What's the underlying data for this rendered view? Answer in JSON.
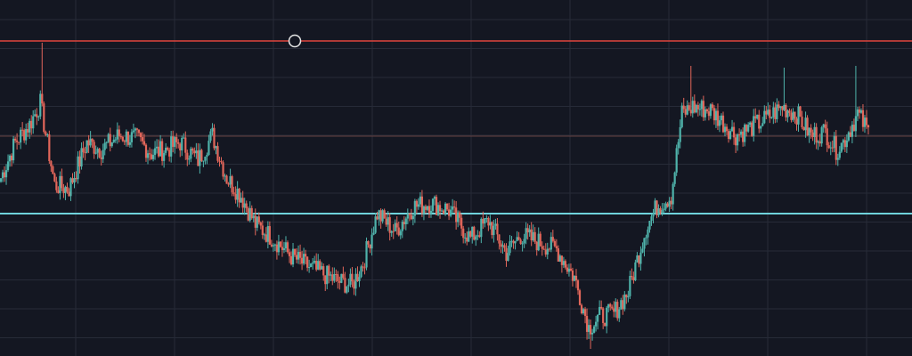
{
  "theme": {
    "background": "#141722",
    "grid": "#272b38",
    "up": "#4fb3ab",
    "down": "#e2665a",
    "resistance": "#e0453d",
    "support": "#6fd3dc",
    "faint": "#7a4a46",
    "handle_stroke": "#e6e6e6"
  },
  "chart_data": {
    "type": "candlestick",
    "grid": true,
    "ylim": [
      0,
      100
    ],
    "horizontal_lines": [
      {
        "kind": "resistance",
        "value": 88.5,
        "has_handle": true
      },
      {
        "kind": "support",
        "value": 40.0,
        "has_handle": false
      },
      {
        "kind": "faint",
        "value": 61.75,
        "has_handle": false
      }
    ],
    "keyframes": [
      [
        0,
        50
      ],
      [
        8,
        60
      ],
      [
        16,
        65
      ],
      [
        22,
        71
      ],
      [
        30,
        48
      ],
      [
        38,
        47
      ],
      [
        48,
        60
      ],
      [
        56,
        58
      ],
      [
        66,
        62
      ],
      [
        76,
        61
      ],
      [
        84,
        57
      ],
      [
        92,
        58
      ],
      [
        100,
        60
      ],
      [
        110,
        55
      ],
      [
        118,
        62
      ],
      [
        126,
        50
      ],
      [
        134,
        45
      ],
      [
        142,
        37
      ],
      [
        152,
        33
      ],
      [
        162,
        28
      ],
      [
        172,
        25
      ],
      [
        180,
        23
      ],
      [
        188,
        21
      ],
      [
        196,
        20
      ],
      [
        202,
        26
      ],
      [
        210,
        40
      ],
      [
        220,
        35
      ],
      [
        230,
        42
      ],
      [
        240,
        43
      ],
      [
        250,
        41
      ],
      [
        262,
        33
      ],
      [
        272,
        38
      ],
      [
        282,
        29
      ],
      [
        290,
        34
      ],
      [
        300,
        32
      ],
      [
        310,
        30
      ],
      [
        320,
        22
      ],
      [
        328,
        8
      ],
      [
        334,
        11
      ],
      [
        342,
        12
      ],
      [
        350,
        18
      ],
      [
        360,
        36
      ],
      [
        366,
        42
      ],
      [
        374,
        45
      ],
      [
        380,
        68
      ],
      [
        386,
        70
      ],
      [
        396,
        69
      ],
      [
        402,
        66
      ],
      [
        410,
        62
      ],
      [
        418,
        64
      ],
      [
        428,
        67
      ],
      [
        436,
        70
      ],
      [
        444,
        68
      ],
      [
        452,
        62
      ],
      [
        460,
        63
      ],
      [
        466,
        58
      ],
      [
        470,
        60
      ],
      [
        478,
        68
      ],
      [
        484,
        63
      ]
    ],
    "spikes": [
      {
        "index": 23,
        "high": 88.0
      },
      {
        "index": 385,
        "high": 81.5
      },
      {
        "index": 437,
        "high": 81.0
      },
      {
        "index": 477,
        "high": 81.5
      },
      {
        "index": 329,
        "low": 2.0
      }
    ]
  }
}
